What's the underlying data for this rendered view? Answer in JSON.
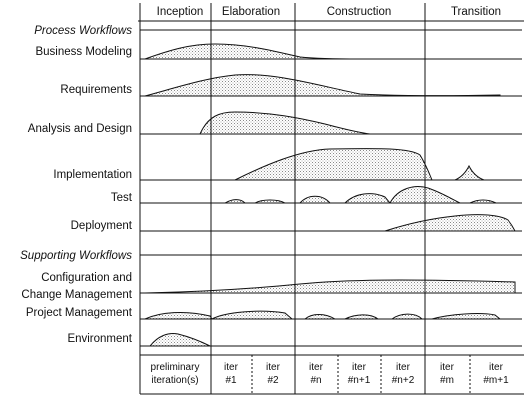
{
  "phases": [
    "Inception",
    "Elaboration",
    "Construction",
    "Transition"
  ],
  "sections": {
    "process": "Process Workflows",
    "supporting": "Supporting Workflows"
  },
  "workflows": [
    {
      "id": "business-modeling",
      "label": "Business Modeling"
    },
    {
      "id": "requirements",
      "label": "Requirements"
    },
    {
      "id": "analysis-and-design",
      "label": "Analysis and Design"
    },
    {
      "id": "implementation",
      "label": "Implementation"
    },
    {
      "id": "test",
      "label": "Test"
    },
    {
      "id": "deployment",
      "label": "Deployment"
    },
    {
      "id": "configuration-and-change-management",
      "label_lines": [
        "Configuration and",
        "Change Management"
      ]
    },
    {
      "id": "project-management",
      "label": "Project Management"
    },
    {
      "id": "environment",
      "label": "Environment"
    }
  ],
  "iterations": [
    {
      "lines": [
        "preliminary",
        "iteration(s)"
      ]
    },
    {
      "lines": [
        "iter",
        "#1"
      ]
    },
    {
      "lines": [
        "iter",
        "#2"
      ]
    },
    {
      "lines": [
        "iter",
        "#n"
      ]
    },
    {
      "lines": [
        "iter",
        "#n+1"
      ]
    },
    {
      "lines": [
        "iter",
        "#n+2"
      ]
    },
    {
      "lines": [
        "iter",
        "#m"
      ]
    },
    {
      "lines": [
        "iter",
        "#m+1"
      ]
    }
  ]
}
